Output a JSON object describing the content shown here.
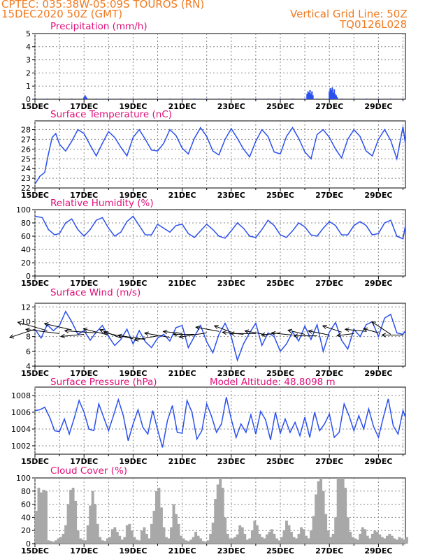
{
  "header": {
    "line1": "CPTEC:   035:38W-05:09S   TOUROS (RN)",
    "line2": "15DEC2020 50Z (GMT)",
    "grid_note": "Vertical Grid Line: 50Z",
    "code": "TQ0126L028"
  },
  "colors": {
    "header": "#f07a20",
    "title": "#e0107a",
    "line": "#2b50ee",
    "cloud": "#a8a8a8",
    "grid": "#888888"
  },
  "chart_data": [
    {
      "id": "precip",
      "type": "bar",
      "title": "Precipitation (mm/h)",
      "extra_title": "",
      "x_tick_labels": [
        "15DEC",
        "17DEC",
        "19DEC",
        "21DEC",
        "23DEC",
        "25DEC",
        "27DEC",
        "29DEC"
      ],
      "x_range_days": [
        0,
        15.1
      ],
      "ylim": [
        0,
        5
      ],
      "yticks": [
        0,
        1,
        2,
        3,
        4,
        5
      ],
      "grid": true,
      "bars_x": [
        0.0,
        0.5,
        1.0,
        1.5,
        2.0,
        2.04,
        2.08,
        2.12,
        2.5,
        3.0,
        3.5,
        4.0,
        4.5,
        5.0,
        5.5,
        6.0,
        6.5,
        7.0,
        7.5,
        8.0,
        8.5,
        9.0,
        9.5,
        10.0,
        10.5,
        11.0,
        11.09,
        11.13,
        11.17,
        11.21,
        11.25,
        11.29,
        11.33,
        11.5,
        12.0,
        12.04,
        12.08,
        12.12,
        12.16,
        12.2,
        12.24,
        12.28,
        12.32,
        12.5,
        13.0,
        13.5,
        14.0,
        14.5,
        15.0
      ],
      "bars_y": [
        0.05,
        0.05,
        0.05,
        0.05,
        0.15,
        0.3,
        0.2,
        0.1,
        0.05,
        0.05,
        0.05,
        0.05,
        0.05,
        0.05,
        0.05,
        0.05,
        0.05,
        0.05,
        0.05,
        0.05,
        0.05,
        0.05,
        0.05,
        0.05,
        0.05,
        0.05,
        0.4,
        0.6,
        0.5,
        0.7,
        0.4,
        0.6,
        0.3,
        0.05,
        0.6,
        0.85,
        0.7,
        0.9,
        0.5,
        0.75,
        0.4,
        0.3,
        0.15,
        0.05,
        0.05,
        0.05,
        0.05,
        0.05,
        0.05
      ]
    },
    {
      "id": "temp",
      "type": "line",
      "title": "Surface Temperature (nC)",
      "extra_title": "",
      "x_tick_labels": [
        "15DEC",
        "17DEC",
        "19DEC",
        "21DEC",
        "23DEC",
        "25DEC",
        "27DEC",
        "29DEC"
      ],
      "ylim": [
        22,
        28.9
      ],
      "yticks": [
        22,
        23,
        24,
        25,
        26,
        27,
        28
      ],
      "grid": true,
      "x": [
        0.0,
        0.2,
        0.4,
        0.55,
        0.7,
        0.85,
        1.0,
        1.25,
        1.5,
        1.75,
        2.0,
        2.25,
        2.5,
        2.75,
        3.0,
        3.25,
        3.5,
        3.75,
        4.0,
        4.25,
        4.5,
        4.75,
        5.0,
        5.25,
        5.5,
        5.75,
        6.0,
        6.25,
        6.5,
        6.75,
        7.0,
        7.25,
        7.5,
        7.75,
        8.0,
        8.25,
        8.5,
        8.75,
        9.0,
        9.25,
        9.5,
        9.75,
        10.0,
        10.25,
        10.5,
        10.75,
        11.0,
        11.25,
        11.5,
        11.75,
        12.0,
        12.25,
        12.5,
        12.75,
        13.0,
        13.25,
        13.5,
        13.75,
        14.0,
        14.25,
        14.5,
        14.75,
        15.0,
        15.1
      ],
      "y": [
        22.4,
        23.2,
        23.6,
        25.5,
        27.2,
        27.6,
        26.5,
        25.8,
        26.8,
        28.0,
        27.6,
        26.4,
        25.3,
        26.6,
        27.8,
        27.2,
        26.2,
        25.3,
        27.2,
        28.0,
        27.0,
        25.9,
        25.8,
        26.6,
        28.0,
        27.4,
        26.1,
        25.5,
        27.1,
        28.2,
        27.3,
        25.8,
        25.4,
        27.0,
        28.1,
        27.1,
        26.0,
        25.2,
        26.8,
        28.0,
        27.3,
        25.7,
        25.5,
        27.3,
        28.2,
        27.1,
        25.7,
        25.0,
        27.5,
        28.0,
        27.2,
        26.0,
        25.1,
        27.0,
        28.0,
        27.3,
        25.8,
        25.3,
        27.0,
        28.0,
        26.9,
        25.0,
        28.3,
        26.5
      ]
    },
    {
      "id": "rh",
      "type": "line",
      "title": "Relative Humidity (%)",
      "extra_title": "",
      "x_tick_labels": [
        "15DEC",
        "17DEC",
        "19DEC",
        "21DEC",
        "23DEC",
        "25DEC",
        "27DEC",
        "29DEC"
      ],
      "ylim": [
        0,
        100
      ],
      "yticks": [
        0,
        20,
        40,
        60,
        80,
        100
      ],
      "grid": true,
      "x": [
        0.0,
        0.3,
        0.55,
        0.8,
        1.0,
        1.25,
        1.5,
        1.75,
        2.0,
        2.25,
        2.5,
        2.75,
        3.0,
        3.25,
        3.5,
        3.75,
        4.0,
        4.25,
        4.5,
        4.75,
        5.0,
        5.25,
        5.5,
        5.75,
        6.0,
        6.25,
        6.5,
        6.75,
        7.0,
        7.25,
        7.5,
        7.75,
        8.0,
        8.25,
        8.5,
        8.75,
        9.0,
        9.25,
        9.5,
        9.75,
        10.0,
        10.25,
        10.5,
        10.75,
        11.0,
        11.25,
        11.5,
        11.75,
        12.0,
        12.25,
        12.5,
        12.75,
        13.0,
        13.25,
        13.5,
        13.75,
        14.0,
        14.25,
        14.5,
        14.75,
        15.0,
        15.1
      ],
      "y": [
        90,
        88,
        70,
        62,
        64,
        80,
        86,
        70,
        60,
        70,
        84,
        88,
        72,
        60,
        66,
        82,
        90,
        76,
        62,
        62,
        78,
        72,
        66,
        76,
        78,
        64,
        58,
        68,
        78,
        70,
        60,
        57,
        68,
        80,
        72,
        60,
        58,
        70,
        84,
        76,
        62,
        58,
        68,
        80,
        74,
        62,
        60,
        72,
        82,
        76,
        62,
        62,
        76,
        82,
        76,
        62,
        64,
        80,
        84,
        60,
        56,
        76
      ]
    },
    {
      "id": "wind",
      "type": "line",
      "title": "Surface Wind (m/s)",
      "extra_title": "",
      "x_tick_labels": [
        "15DEC",
        "17DEC",
        "19DEC",
        "21DEC",
        "23DEC",
        "25DEC",
        "27DEC",
        "29DEC"
      ],
      "ylim": [
        4,
        12.5
      ],
      "yticks": [
        4,
        6,
        8,
        10,
        12
      ],
      "grid": true,
      "x": [
        0.0,
        0.25,
        0.5,
        0.75,
        1.0,
        1.25,
        1.5,
        1.75,
        2.0,
        2.25,
        2.5,
        2.75,
        3.0,
        3.25,
        3.5,
        3.75,
        4.0,
        4.25,
        4.5,
        4.75,
        5.0,
        5.25,
        5.5,
        5.75,
        6.0,
        6.25,
        6.5,
        6.75,
        7.0,
        7.25,
        7.5,
        7.75,
        8.0,
        8.25,
        8.5,
        8.75,
        9.0,
        9.25,
        9.5,
        9.75,
        10.0,
        10.25,
        10.5,
        10.75,
        11.0,
        11.25,
        11.5,
        11.75,
        12.0,
        12.25,
        12.5,
        12.75,
        13.0,
        13.25,
        13.5,
        13.75,
        14.0,
        14.25,
        14.5,
        14.75,
        15.0,
        15.1
      ],
      "y": [
        9.0,
        7.8,
        9.6,
        8.8,
        9.5,
        11.4,
        10.0,
        8.3,
        8.8,
        7.5,
        8.6,
        9.5,
        8.0,
        6.8,
        7.6,
        9.0,
        7.0,
        8.8,
        7.3,
        6.5,
        7.8,
        8.3,
        7.4,
        9.2,
        9.5,
        6.5,
        8.0,
        9.5,
        7.3,
        5.8,
        8.3,
        9.8,
        8.0,
        4.8,
        7.0,
        8.5,
        9.8,
        6.8,
        8.5,
        8.0,
        6.0,
        7.0,
        8.6,
        7.4,
        9.4,
        7.6,
        9.6,
        6.0,
        8.6,
        9.9,
        7.5,
        6.3,
        9.0,
        8.0,
        9.6,
        10.0,
        8.0,
        10.5,
        11.0,
        8.5,
        8.3,
        8.8
      ],
      "arrow_x": [
        0.0,
        0.5,
        1.0,
        1.5,
        2.0,
        2.5,
        3.0,
        3.5,
        4.0,
        4.5,
        5.0,
        5.5,
        6.0,
        6.5,
        7.0,
        7.5,
        8.0,
        8.5,
        9.0,
        9.5,
        10.0,
        10.5,
        11.0,
        11.5,
        12.0,
        12.5,
        13.0,
        13.5,
        14.0,
        14.5,
        15.0
      ],
      "arrow_y": [
        9.0,
        8.8,
        8.4,
        8.9,
        8.3,
        8.5,
        8.2,
        7.8,
        7.7,
        7.6,
        8.1,
        7.9,
        8.4,
        8.3,
        8.5,
        8.7,
        8.6,
        8.3,
        8.4,
        8.2,
        8.5,
        8.2,
        8.3,
        8.1,
        8.2,
        8.6,
        8.4,
        8.7,
        8.5,
        8.3,
        8.2
      ],
      "arrow_u": [
        -1.2,
        -1.4,
        -1.6,
        -1.3,
        -1.1,
        -1.5,
        -1.2,
        -1.0,
        -1.4,
        -1.3,
        -1.1,
        -1.2,
        -0.9,
        -1.0,
        -1.3,
        -1.1,
        -0.8,
        -1.0,
        -1.2,
        -1.1,
        -0.9,
        -1.0,
        -0.8,
        -1.1,
        -1.0,
        -0.9,
        -0.8,
        -1.0,
        -0.7,
        -0.9,
        -1.0
      ],
      "arrow_v": [
        -0.4,
        0.4,
        0.2,
        0.3,
        -0.1,
        0.1,
        0.3,
        0.4,
        0.3,
        0.2,
        -0.2,
        0.2,
        0.1,
        0.0,
        -0.2,
        0.2,
        0.3,
        0.1,
        0.0,
        0.2,
        -0.1,
        0.1,
        0.2,
        0.0,
        0.2,
        0.3,
        -0.1,
        0.1,
        0.2,
        0.6,
        0.0
      ]
    },
    {
      "id": "pres",
      "type": "line",
      "title": "Surface Pressure (hPa)",
      "extra_title": "Model Altitude: 48.8098  m",
      "x_tick_labels": [
        "15DEC",
        "17DEC",
        "19DEC",
        "21DEC",
        "23DEC",
        "25DEC",
        "27DEC",
        "29DEC"
      ],
      "ylim": [
        1001,
        1009
      ],
      "yticks": [
        1002,
        1004,
        1006,
        1008
      ],
      "grid": true,
      "x": [
        0.0,
        0.2,
        0.4,
        0.6,
        0.8,
        1.0,
        1.2,
        1.4,
        1.6,
        1.8,
        2.0,
        2.2,
        2.4,
        2.6,
        2.8,
        3.0,
        3.2,
        3.4,
        3.6,
        3.8,
        4.0,
        4.2,
        4.4,
        4.6,
        4.8,
        5.0,
        5.2,
        5.4,
        5.6,
        5.8,
        6.0,
        6.2,
        6.4,
        6.6,
        6.8,
        7.0,
        7.2,
        7.4,
        7.6,
        7.8,
        8.0,
        8.2,
        8.4,
        8.6,
        8.8,
        9.0,
        9.2,
        9.4,
        9.6,
        9.8,
        10.0,
        10.2,
        10.4,
        10.6,
        10.8,
        11.0,
        11.2,
        11.4,
        11.6,
        11.8,
        12.0,
        12.2,
        12.4,
        12.6,
        12.8,
        13.0,
        13.2,
        13.4,
        13.6,
        13.8,
        14.0,
        14.2,
        14.4,
        14.6,
        14.8,
        15.0,
        15.1
      ],
      "y": [
        1006.2,
        1006.3,
        1006.6,
        1005.4,
        1003.8,
        1003.7,
        1005.2,
        1003.4,
        1005.3,
        1007.4,
        1006.0,
        1004.0,
        1003.8,
        1007.0,
        1005.4,
        1003.8,
        1005.6,
        1007.5,
        1005.6,
        1002.6,
        1004.6,
        1006.3,
        1004.2,
        1003.4,
        1006.2,
        1003.9,
        1001.8,
        1005.0,
        1006.8,
        1003.6,
        1003.5,
        1007.4,
        1006.0,
        1002.8,
        1003.8,
        1007.0,
        1005.5,
        1003.6,
        1004.6,
        1007.8,
        1005.2,
        1003.0,
        1004.6,
        1003.6,
        1005.7,
        1003.4,
        1006.1,
        1005.1,
        1002.7,
        1006.0,
        1003.5,
        1005.2,
        1003.6,
        1004.8,
        1003.2,
        1005.4,
        1003.0,
        1006.0,
        1003.8,
        1004.6,
        1005.8,
        1003.0,
        1003.6,
        1007.0,
        1005.6,
        1003.8,
        1005.6,
        1004.0,
        1006.4,
        1004.3,
        1003.0,
        1005.4,
        1007.6,
        1004.4,
        1003.4,
        1006.2,
        1005.4
      ]
    },
    {
      "id": "cloud",
      "type": "area",
      "title": "Cloud Cover (%)",
      "extra_title": "",
      "x_tick_labels": [
        "15DEC",
        "17DEC",
        "19DEC",
        "21DEC",
        "23DEC",
        "25DEC",
        "27DEC",
        "29DEC"
      ],
      "ylim": [
        0,
        100
      ],
      "yticks": [
        0,
        20,
        40,
        60,
        80,
        100
      ],
      "grid": true,
      "x": [
        0.0,
        0.1,
        0.2,
        0.3,
        0.4,
        0.5,
        0.6,
        0.7,
        0.8,
        0.9,
        1.0,
        1.1,
        1.2,
        1.3,
        1.4,
        1.5,
        1.6,
        1.7,
        1.8,
        1.9,
        2.0,
        2.1,
        2.2,
        2.3,
        2.4,
        2.5,
        2.6,
        2.7,
        2.8,
        2.9,
        3.0,
        3.1,
        3.2,
        3.3,
        3.4,
        3.5,
        3.6,
        3.7,
        3.8,
        3.9,
        4.0,
        4.1,
        4.2,
        4.3,
        4.4,
        4.5,
        4.6,
        4.7,
        4.8,
        4.9,
        5.0,
        5.1,
        5.2,
        5.3,
        5.4,
        5.5,
        5.6,
        5.7,
        5.8,
        5.9,
        6.0,
        6.1,
        6.2,
        6.3,
        6.4,
        6.5,
        6.6,
        6.7,
        6.8,
        6.9,
        7.0,
        7.1,
        7.2,
        7.3,
        7.4,
        7.5,
        7.6,
        7.7,
        7.8,
        7.9,
        8.0,
        8.1,
        8.2,
        8.3,
        8.4,
        8.5,
        8.6,
        8.7,
        8.8,
        8.9,
        9.0,
        9.1,
        9.2,
        9.3,
        9.4,
        9.5,
        9.6,
        9.7,
        9.8,
        9.9,
        10.0,
        10.1,
        10.2,
        10.3,
        10.4,
        10.5,
        10.6,
        10.7,
        10.8,
        10.9,
        11.0,
        11.1,
        11.2,
        11.3,
        11.4,
        11.5,
        11.6,
        11.7,
        11.8,
        11.9,
        12.0,
        12.1,
        12.2,
        12.3,
        12.4,
        12.5,
        12.6,
        12.7,
        12.8,
        12.9,
        13.0,
        13.1,
        13.2,
        13.3,
        13.4,
        13.5,
        13.6,
        13.7,
        13.8,
        13.9,
        14.0,
        14.1,
        14.2,
        14.3,
        14.4,
        14.5,
        14.6,
        14.7,
        14.8,
        14.9,
        15.0,
        15.1
      ],
      "y": [
        50,
        85,
        78,
        82,
        80,
        5,
        4,
        3,
        5,
        8,
        10,
        15,
        28,
        60,
        82,
        85,
        65,
        20,
        8,
        6,
        5,
        28,
        58,
        80,
        60,
        30,
        10,
        5,
        4,
        8,
        10,
        22,
        25,
        18,
        12,
        6,
        10,
        28,
        30,
        20,
        10,
        6,
        5,
        20,
        25,
        15,
        8,
        30,
        50,
        80,
        85,
        55,
        25,
        10,
        8,
        25,
        60,
        45,
        30,
        12,
        8,
        5,
        4,
        6,
        10,
        18,
        12,
        8,
        4,
        3,
        5,
        15,
        32,
        68,
        90,
        100,
        85,
        40,
        15,
        8,
        8,
        10,
        14,
        28,
        25,
        15,
        6,
        8,
        20,
        35,
        28,
        15,
        10,
        8,
        14,
        18,
        22,
        15,
        8,
        5,
        10,
        20,
        35,
        28,
        18,
        10,
        8,
        15,
        25,
        22,
        12,
        8,
        20,
        42,
        75,
        95,
        100,
        80,
        45,
        20,
        10,
        15,
        40,
        100,
        100,
        100,
        85,
        40,
        18,
        10,
        8,
        6,
        15,
        25,
        22,
        12,
        8,
        15,
        20,
        18,
        14,
        10,
        8,
        12,
        15,
        12,
        8,
        6,
        10,
        8,
        6,
        10
      ]
    }
  ]
}
